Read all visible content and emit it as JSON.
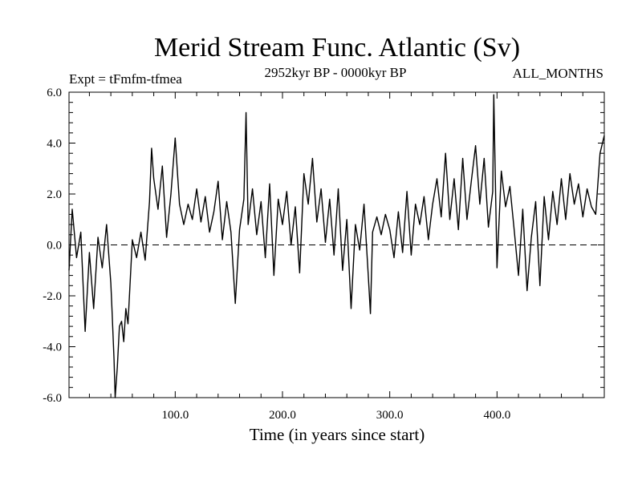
{
  "chart_data": {
    "type": "line",
    "title": "Merid Stream Func. Atlantic (Sv)",
    "expt_label": "Expt = tFmfm-tfmea",
    "period_label": "2952kyr BP - 0000kyr BP",
    "months_label": "ALL_MONTHS",
    "xlabel": "Time (in years since start)",
    "ylabel": "",
    "xlim": [
      1,
      500
    ],
    "ylim": [
      -6.0,
      6.0
    ],
    "x_ticks": [
      100,
      200,
      300,
      400
    ],
    "x_tick_labels": [
      "100.0",
      "200.0",
      "300.0",
      "400.0"
    ],
    "y_ticks": [
      -6,
      -4,
      -2,
      0,
      2,
      4,
      6
    ],
    "y_tick_labels": [
      "-6.0",
      "-4.0",
      "-2.0",
      "0.0",
      "2.0",
      "4.0",
      "6.0"
    ],
    "reference_line": 0,
    "series": [
      {
        "name": "Merid Stream Func. Atlantic",
        "x": [
          1,
          4,
          8,
          12,
          16,
          20,
          24,
          28,
          32,
          36,
          40,
          41,
          43,
          44,
          46,
          48,
          50,
          52,
          54,
          56,
          60,
          64,
          68,
          72,
          76,
          78,
          80,
          84,
          88,
          92,
          96,
          100,
          104,
          108,
          112,
          116,
          120,
          124,
          128,
          132,
          136,
          140,
          144,
          148,
          152,
          156,
          160,
          164,
          166,
          168,
          172,
          176,
          180,
          184,
          188,
          192,
          196,
          200,
          204,
          208,
          212,
          216,
          220,
          224,
          228,
          232,
          236,
          240,
          244,
          248,
          252,
          256,
          260,
          264,
          268,
          272,
          276,
          280,
          282,
          284,
          288,
          292,
          296,
          300,
          304,
          308,
          312,
          316,
          320,
          324,
          328,
          332,
          336,
          340,
          344,
          348,
          352,
          356,
          360,
          364,
          368,
          372,
          376,
          380,
          384,
          388,
          392,
          396,
          397,
          400,
          404,
          408,
          412,
          416,
          420,
          424,
          428,
          432,
          436,
          440,
          444,
          448,
          452,
          456,
          460,
          464,
          468,
          472,
          476,
          480,
          484,
          488,
          492,
          496,
          500
        ],
        "values": [
          -1.0,
          1.4,
          -0.5,
          0.5,
          -3.4,
          -0.3,
          -2.5,
          0.3,
          -0.9,
          0.8,
          -1.5,
          -2.5,
          -4.5,
          -6.0,
          -4.8,
          -3.2,
          -3.0,
          -3.8,
          -2.5,
          -3.1,
          0.2,
          -0.5,
          0.5,
          -0.6,
          1.7,
          3.8,
          2.6,
          1.4,
          3.1,
          0.3,
          2.0,
          4.2,
          1.6,
          0.8,
          1.6,
          1.0,
          2.2,
          0.9,
          1.9,
          0.5,
          1.3,
          2.5,
          0.2,
          1.7,
          0.5,
          -2.3,
          0.6,
          1.8,
          5.2,
          0.8,
          2.2,
          0.4,
          1.7,
          -0.5,
          2.4,
          -1.2,
          1.8,
          0.8,
          2.1,
          0.0,
          1.5,
          -1.1,
          2.8,
          1.6,
          3.4,
          0.9,
          2.2,
          0.1,
          1.8,
          -0.4,
          2.2,
          -1.0,
          1.0,
          -2.5,
          0.8,
          -0.2,
          1.6,
          -1.2,
          -2.7,
          0.5,
          1.1,
          0.4,
          1.2,
          0.6,
          -0.5,
          1.3,
          -0.3,
          2.1,
          -0.4,
          1.6,
          0.8,
          1.9,
          0.2,
          1.6,
          2.6,
          1.1,
          3.6,
          1.0,
          2.6,
          0.6,
          3.4,
          1.0,
          2.5,
          3.9,
          1.6,
          3.4,
          0.7,
          2.1,
          5.9,
          -0.9,
          2.9,
          1.5,
          2.3,
          0.6,
          -1.2,
          1.4,
          -1.8,
          0.3,
          1.7,
          -1.6,
          1.9,
          0.2,
          2.1,
          0.8,
          2.6,
          1.0,
          2.8,
          1.6,
          2.4,
          1.1,
          2.2,
          1.5,
          1.2,
          3.6,
          4.3
        ]
      }
    ]
  }
}
